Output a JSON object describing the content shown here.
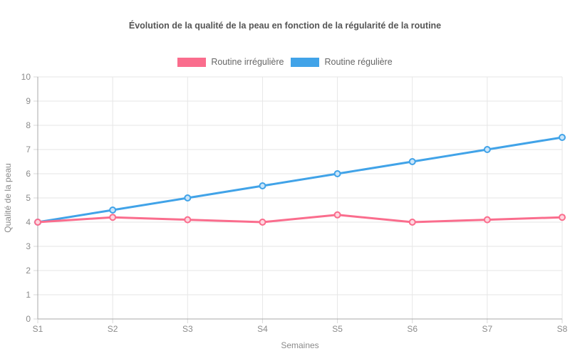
{
  "chart_data": {
    "type": "line",
    "title": "Évolution de la qualité de la peau en fonction de la régularité de la routine",
    "xlabel": "Semaines",
    "ylabel": "Qualité de la peau",
    "categories": [
      "S1",
      "S2",
      "S3",
      "S4",
      "S5",
      "S6",
      "S7",
      "S8"
    ],
    "series": [
      {
        "name": "Routine irrégulière",
        "color": "#fa6d8d",
        "values": [
          4,
          4.2,
          4.1,
          4,
          4.3,
          4,
          4.1,
          4.2
        ]
      },
      {
        "name": "Routine régulière",
        "color": "#41a3e8",
        "values": [
          4,
          4.5,
          5,
          5.5,
          6,
          6.5,
          7,
          7.5
        ]
      }
    ],
    "ylim": [
      0,
      10
    ],
    "ytick_step": 1,
    "yticks": [
      0,
      1,
      2,
      3,
      4,
      5,
      6,
      7,
      8,
      9,
      10
    ],
    "grid": true,
    "legend_position": "top"
  },
  "colors": {
    "background": "#ffffff",
    "grid": "#e6e6e6",
    "axis_line": "#a8a8a8",
    "tick_mark": "#d9d9d9",
    "tick_label": "#8b8b8b",
    "axis_title": "#8b8b8b",
    "title": "#555555",
    "legend_text": "#666666"
  }
}
